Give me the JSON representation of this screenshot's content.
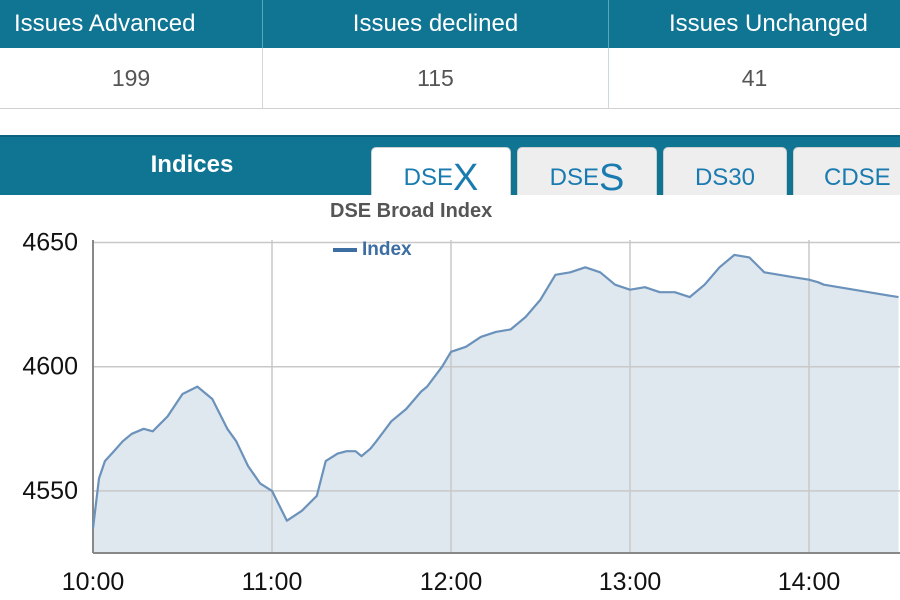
{
  "stats": {
    "headers": [
      "Issues Advanced",
      "Issues declined",
      "Issues Unchanged"
    ],
    "values": [
      "199",
      "115",
      "41"
    ]
  },
  "indices": {
    "title": "Indices",
    "tabs": [
      {
        "prefix": "DSE",
        "big": "X"
      },
      {
        "prefix": "DSE",
        "big": "S"
      },
      {
        "label": "DS30"
      },
      {
        "label": "CDSE"
      }
    ],
    "active_tab": 0
  },
  "colors": {
    "header_bg": "#0f7593",
    "line": "#6b92bb",
    "fill": "#dfe7ef",
    "legend": "#3c6ea3",
    "tab_text": "#1a7bb0"
  },
  "chart_data": {
    "type": "area",
    "title": "DSE Broad Index",
    "legend": [
      {
        "name": "Index",
        "placement": "top-left"
      }
    ],
    "xlabel": "",
    "ylabel": "",
    "x_ticks": [
      "10:00",
      "11:00",
      "12:00",
      "13:00",
      "14:00"
    ],
    "y_ticks": [
      4550,
      4600,
      4650
    ],
    "ylim": [
      4525,
      4651
    ],
    "xlim_minutes": [
      0,
      270
    ],
    "grid": true,
    "series": [
      {
        "name": "Index",
        "x_minutes": [
          0,
          2,
          4,
          7,
          10,
          13,
          17,
          20,
          25,
          30,
          35,
          40,
          45,
          48,
          52,
          56,
          60,
          65,
          70,
          75,
          78,
          82,
          85,
          88,
          90,
          93,
          95,
          100,
          105,
          110,
          112,
          117,
          120,
          125,
          130,
          135,
          140,
          145,
          150,
          155,
          160,
          165,
          170,
          175,
          180,
          185,
          190,
          195,
          200,
          205,
          210,
          215,
          220,
          225,
          230,
          235,
          240,
          243,
          245,
          250,
          255,
          260,
          265,
          270
        ],
        "values": [
          4535,
          4555,
          4562,
          4566,
          4570,
          4573,
          4575,
          4574,
          4580,
          4589,
          4592,
          4587,
          4575,
          4570,
          4560,
          4553,
          4550,
          4538,
          4542,
          4548,
          4562,
          4565,
          4566,
          4566,
          4564,
          4567,
          4570,
          4578,
          4583,
          4590,
          4592,
          4600,
          4606,
          4608,
          4612,
          4614,
          4615,
          4620,
          4627,
          4637,
          4638,
          4640,
          4638,
          4633,
          4631,
          4632,
          4630,
          4630,
          4628,
          4633,
          4640,
          4645,
          4644,
          4638,
          4637,
          4636,
          4635,
          4634,
          4633,
          4632,
          4631,
          4630,
          4629,
          4628
        ]
      }
    ]
  }
}
